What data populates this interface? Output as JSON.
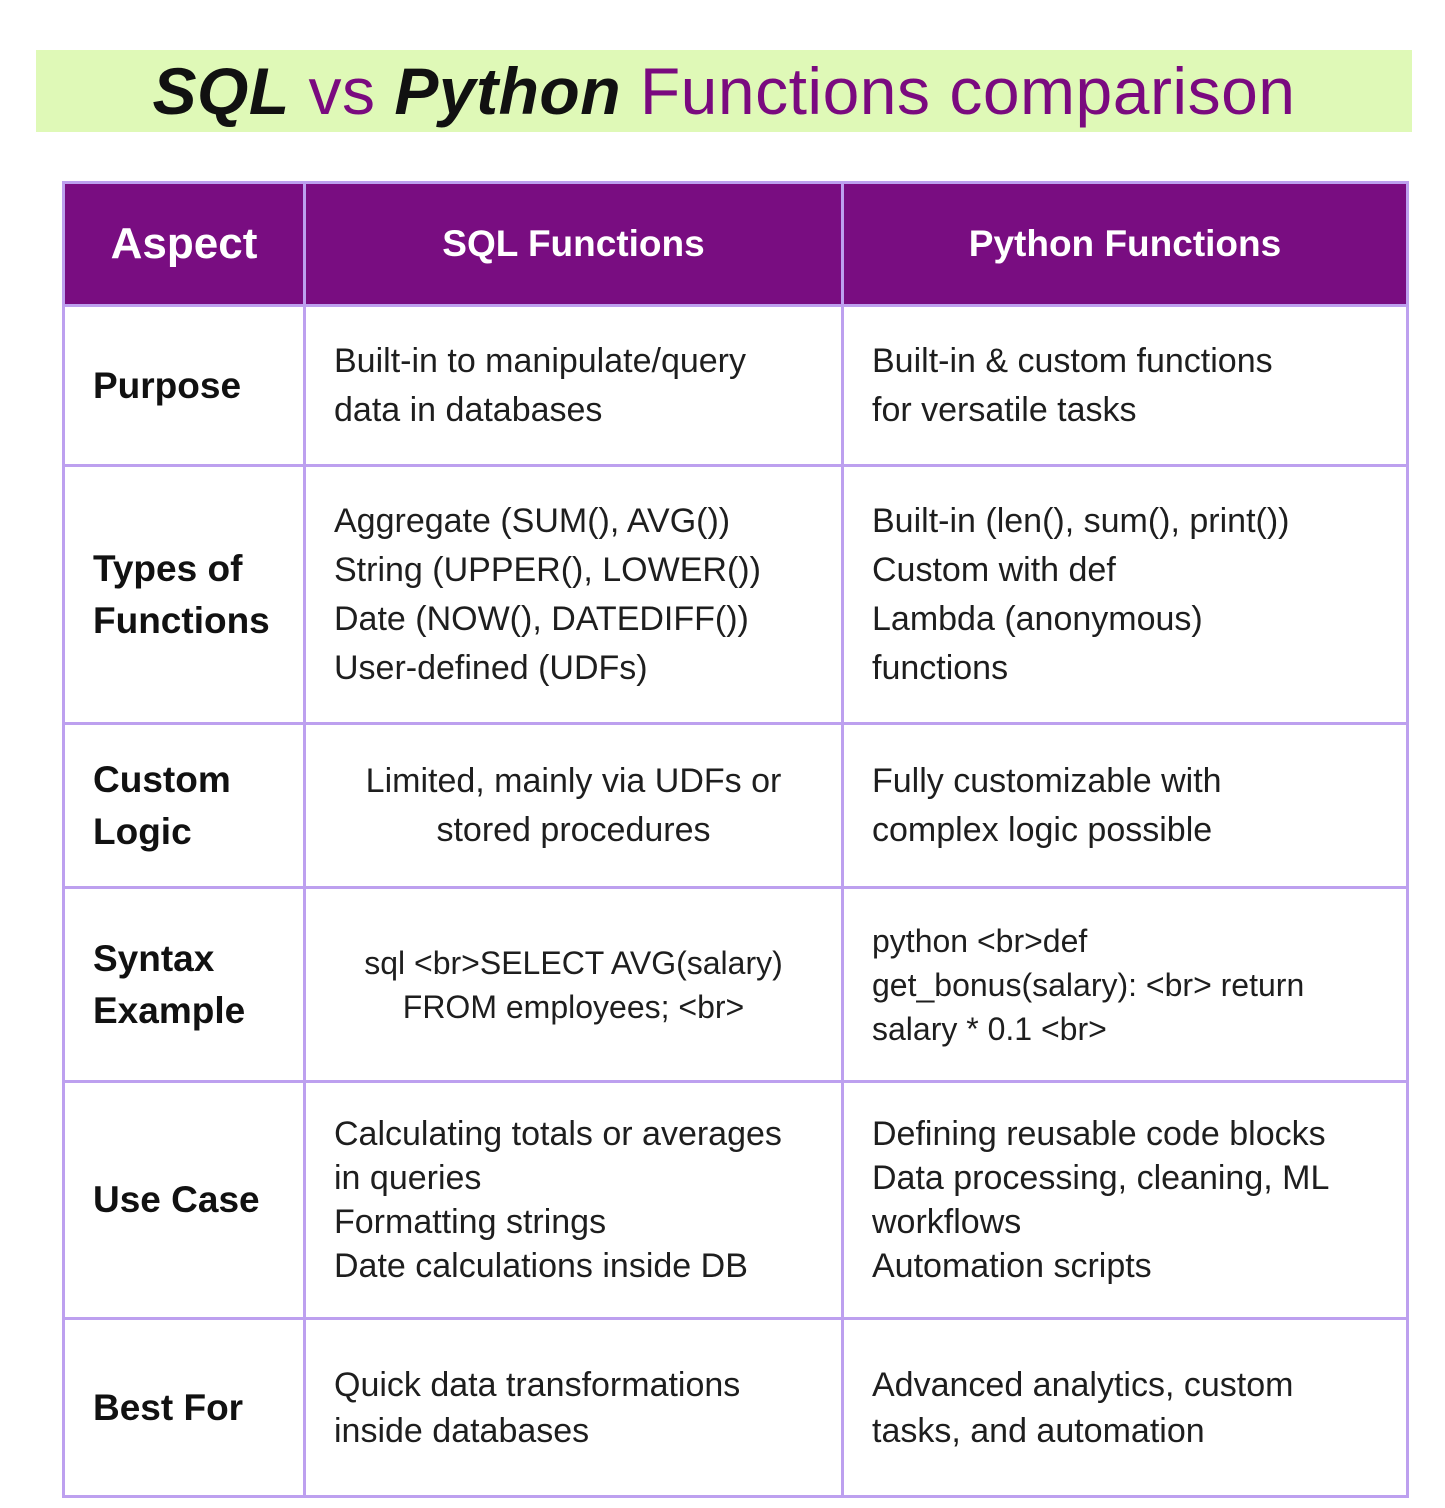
{
  "title": {
    "part1": "SQL",
    "part2": " vs ",
    "part3": "Python",
    "part4": " Functions comparison"
  },
  "colors": {
    "banner": "#dff9b7",
    "header_bg": "#790d81",
    "title_purple": "#7a0a7f",
    "border": "#bda0ef"
  },
  "table": {
    "headers": [
      "Aspect",
      "SQL Functions",
      "Python Functions"
    ],
    "rows": [
      {
        "aspect": [
          "Purpose"
        ],
        "sql": [
          "Built-in to manipulate/query",
          "data in databases"
        ],
        "python": [
          "Built-in & custom functions",
          "for versatile tasks"
        ]
      },
      {
        "aspect": [
          "Types of",
          "Functions"
        ],
        "sql": [
          "Aggregate (SUM(), AVG())",
          "String (UPPER(), LOWER())",
          "Date (NOW(), DATEDIFF())",
          "User-defined (UDFs)"
        ],
        "python": [
          "Built-in (len(), sum(), print())",
          "Custom with def",
          "Lambda (anonymous)",
          "functions"
        ]
      },
      {
        "aspect": [
          "Custom",
          "Logic"
        ],
        "sql": [
          "Limited, mainly via UDFs or",
          "stored procedures"
        ],
        "python": [
          "Fully customizable with",
          "complex logic possible"
        ]
      },
      {
        "aspect": [
          "Syntax",
          "Example"
        ],
        "sql": [
          "sql <br>SELECT AVG(salary)",
          "FROM employees; <br>"
        ],
        "python": [
          "python <br>def",
          "get_bonus(salary): <br> return",
          "salary * 0.1 <br>"
        ]
      },
      {
        "aspect": [
          "Use Case"
        ],
        "sql": [
          "Calculating totals or averages",
          "in queries",
          "Formatting strings",
          "Date calculations inside DB"
        ],
        "python": [
          "Defining reusable code blocks",
          "Data processing, cleaning, ML",
          "workflows",
          "Automation scripts"
        ]
      },
      {
        "aspect": [
          "Best For"
        ],
        "sql": [
          "Quick data transformations",
          "inside databases"
        ],
        "python": [
          "Advanced analytics, custom",
          "tasks, and automation"
        ]
      }
    ]
  }
}
